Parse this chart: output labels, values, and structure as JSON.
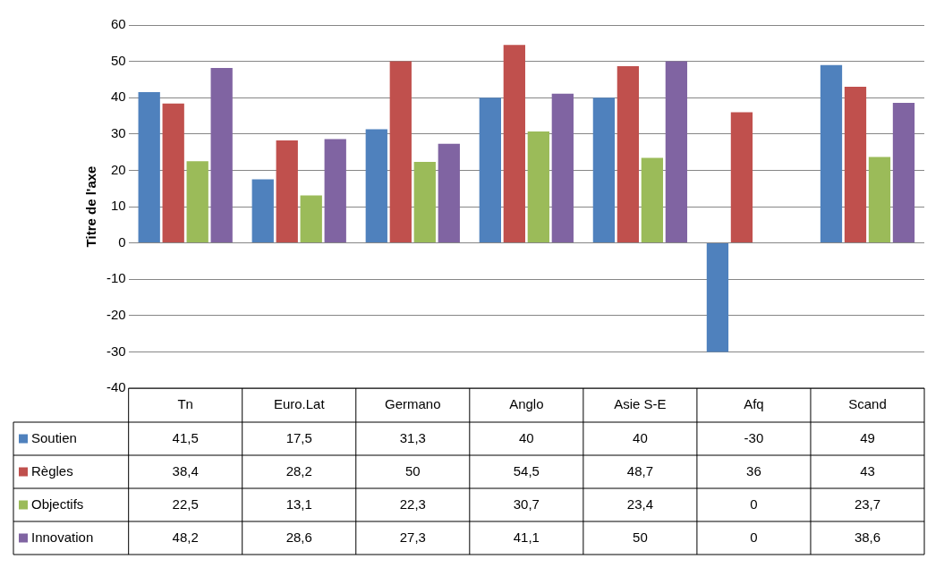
{
  "chart_data": {
    "type": "bar",
    "ylabel": "Titre de l'axe",
    "categories": [
      "Tn",
      "Euro.Lat",
      "Germano",
      "Anglo",
      "Asie S-E",
      "Afq",
      "Scand"
    ],
    "series": [
      {
        "name": "Soutien",
        "color": "#4f81bd",
        "values": [
          41.5,
          17.5,
          31.3,
          40,
          40,
          -30,
          49
        ],
        "value_labels": [
          "41,5",
          "17,5",
          "31,3",
          "40",
          "40",
          "-30",
          "49"
        ]
      },
      {
        "name": "Règles",
        "color": "#c0504d",
        "values": [
          38.4,
          28.2,
          50,
          54.5,
          48.7,
          36,
          43
        ],
        "value_labels": [
          "38,4",
          "28,2",
          "50",
          "54,5",
          "48,7",
          "36",
          "43"
        ]
      },
      {
        "name": "Objectifs",
        "color": "#9bbb59",
        "values": [
          22.5,
          13.1,
          22.3,
          30.7,
          23.4,
          0,
          23.7
        ],
        "value_labels": [
          "22,5",
          "13,1",
          "22,3",
          "30,7",
          "23,4",
          "0",
          "23,7"
        ]
      },
      {
        "name": "Innovation",
        "color": "#8064a2",
        "values": [
          48.2,
          28.6,
          27.3,
          41.1,
          50,
          0,
          38.6
        ],
        "value_labels": [
          "48,2",
          "28,6",
          "27,3",
          "41,1",
          "50",
          "0",
          "38,6"
        ]
      }
    ],
    "ylim": [
      -40,
      60
    ],
    "yticks": [
      -40,
      -30,
      -20,
      -10,
      0,
      10,
      20,
      30,
      40,
      50,
      60
    ],
    "grid": "y",
    "legend": "bottom"
  }
}
